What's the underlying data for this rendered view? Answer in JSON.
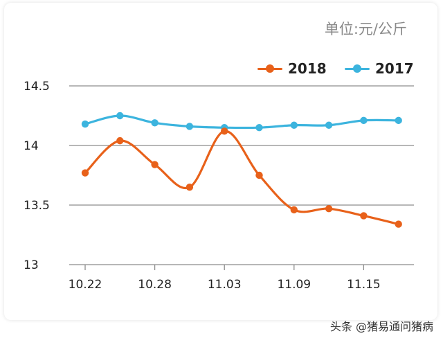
{
  "unit_label": "单位:元/公斤",
  "watermark": "头条 @猪易通问猪病",
  "chart_data": {
    "type": "line",
    "title": "",
    "xlabel": "",
    "ylabel": "单位:元/公斤",
    "ylim": [
      13,
      14.5
    ],
    "yticks": [
      "14.5",
      "14",
      "13.5",
      "13"
    ],
    "ytick_values": [
      14.5,
      14,
      13.5,
      13
    ],
    "x_tick_labels": [
      {
        "label": "10.22",
        "index": 0
      },
      {
        "label": "10.28",
        "index": 2
      },
      {
        "label": "11.03",
        "index": 4
      },
      {
        "label": "11.09",
        "index": 6
      },
      {
        "label": "11.15",
        "index": 8
      }
    ],
    "grid": true,
    "legend_position": "top-right",
    "series": [
      {
        "name": "2018",
        "color": "#e8611a",
        "values": [
          13.77,
          14.04,
          13.84,
          13.65,
          14.12,
          13.75,
          13.46,
          13.47,
          13.41,
          13.34
        ]
      },
      {
        "name": "2017",
        "color": "#3cb4de",
        "values": [
          14.18,
          14.25,
          14.19,
          14.16,
          14.15,
          14.15,
          14.17,
          14.17,
          14.21,
          14.21
        ]
      }
    ]
  }
}
